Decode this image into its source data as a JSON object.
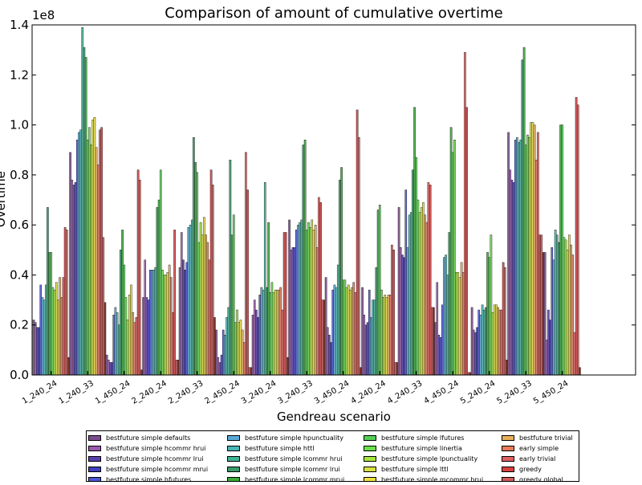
{
  "chart_data": {
    "type": "bar",
    "title": "Comparison of amount of cumulative overtime",
    "xlabel": "Gendreau scenario",
    "ylabel": "Overtime",
    "exponent_label": "1e8",
    "ylim": [
      0,
      1.4
    ],
    "yticks": [
      "0.0",
      "0.2",
      "0.4",
      "0.6",
      "0.8",
      "1.0",
      "1.2",
      "1.4"
    ],
    "grid": false,
    "legend_position": "bottom",
    "categories": [
      "1_240_24",
      "1_240_33",
      "1_450_24",
      "2_240_24",
      "2_240_33",
      "2_450_24",
      "3_240_24",
      "3_240_33",
      "3_450_24",
      "4_240_24",
      "4_240_33",
      "4_450_24",
      "5_240_24",
      "5_240_33",
      "5_450_24"
    ],
    "series": [
      {
        "name": "bestfuture simple defaults",
        "color": "#7d4e8e",
        "values": [
          0.22,
          0.89,
          0.08,
          0.31,
          0.43,
          0.18,
          0.24,
          0.62,
          0.39,
          0.35,
          0.67,
          0.21,
          0.27,
          0.97,
          0.49
        ]
      },
      {
        "name": "bestfuture simple hcommr hrui",
        "color": "#9c59b0",
        "values": [
          0.21,
          0.78,
          0.06,
          0.46,
          0.57,
          0.07,
          0.3,
          0.5,
          0.19,
          0.24,
          0.51,
          0.37,
          0.18,
          0.82,
          0.14
        ]
      },
      {
        "name": "bestfuture simple hcommr lrui",
        "color": "#5a3fb0",
        "values": [
          0.19,
          0.76,
          0.05,
          0.31,
          0.46,
          0.05,
          0.26,
          0.51,
          0.16,
          0.2,
          0.48,
          0.16,
          0.17,
          0.78,
          0.26
        ]
      },
      {
        "name": "bestfuture simple hcommr mrui",
        "color": "#3f3fbf",
        "values": [
          0.19,
          0.77,
          0.05,
          0.3,
          0.42,
          0.08,
          0.23,
          0.51,
          0.13,
          0.21,
          0.47,
          0.15,
          0.19,
          0.77,
          0.22
        ]
      },
      {
        "name": "bestfuture simple hfutures",
        "color": "#4a55d8",
        "values": [
          0.36,
          0.94,
          0.24,
          0.42,
          0.45,
          0.18,
          0.32,
          0.58,
          0.34,
          0.34,
          0.74,
          0.28,
          0.26,
          0.94,
          0.51
        ]
      },
      {
        "name": "bestfuture simple hpunctuality",
        "color": "#5aaad8",
        "values": [
          0.31,
          0.97,
          0.27,
          0.42,
          0.59,
          0.16,
          0.35,
          0.6,
          0.36,
          0.23,
          0.51,
          0.47,
          0.24,
          0.95,
          0.46
        ]
      },
      {
        "name": "bestfuture simple httl",
        "color": "#4ab5b5",
        "values": [
          0.3,
          0.98,
          0.25,
          0.42,
          0.6,
          0.23,
          0.34,
          0.61,
          0.35,
          0.3,
          0.64,
          0.48,
          0.28,
          0.93,
          0.58
        ]
      },
      {
        "name": "bestfuture simple lcommr hrui",
        "color": "#3fb595",
        "values": [
          0.36,
          1.39,
          0.2,
          0.43,
          0.62,
          0.27,
          0.77,
          0.62,
          0.44,
          0.3,
          0.65,
          0.4,
          0.26,
          0.94,
          0.56
        ]
      },
      {
        "name": "bestfuture simple lcommr lrui",
        "color": "#3a9a6a",
        "values": [
          0.67,
          1.31,
          0.5,
          0.67,
          0.95,
          0.86,
          0.35,
          0.92,
          0.78,
          0.43,
          0.82,
          0.57,
          0.27,
          1.26,
          0.53
        ]
      },
      {
        "name": "bestfuture simple lcommr mrui",
        "color": "#3aaa3a",
        "values": [
          0.49,
          1.27,
          0.58,
          0.7,
          0.85,
          0.56,
          0.61,
          0.94,
          0.83,
          0.66,
          1.07,
          0.99,
          0.49,
          1.31,
          1.0
        ]
      },
      {
        "name": "bestfuture simple lfutures",
        "color": "#55d055",
        "values": [
          0.49,
          0.94,
          0.44,
          0.82,
          0.81,
          0.64,
          0.33,
          0.58,
          0.38,
          0.68,
          0.87,
          0.89,
          0.47,
          0.92,
          1.0
        ]
      },
      {
        "name": "bestfuture simple linertia",
        "color": "#6ae04a",
        "values": [
          0.35,
          0.99,
          0.31,
          0.42,
          0.53,
          0.21,
          0.37,
          0.61,
          0.38,
          0.34,
          0.7,
          0.94,
          0.56,
          0.96,
          0.55
        ]
      },
      {
        "name": "bestfuture simple lpunctuality",
        "color": "#a5e63f",
        "values": [
          0.34,
          0.92,
          0.22,
          0.4,
          0.61,
          0.26,
          0.33,
          0.59,
          0.35,
          0.31,
          0.65,
          0.41,
          0.25,
          0.95,
          0.54
        ]
      },
      {
        "name": "bestfuture simple lttl",
        "color": "#d8e03f",
        "values": [
          0.37,
          1.02,
          0.32,
          0.4,
          0.56,
          0.21,
          0.34,
          0.62,
          0.36,
          0.32,
          0.67,
          0.41,
          0.28,
          1.01,
          0.5
        ]
      },
      {
        "name": "bestfuture simple mcommr hrui",
        "color": "#f0e040",
        "values": [
          0.3,
          1.03,
          0.36,
          0.41,
          0.63,
          0.22,
          0.34,
          0.58,
          0.34,
          0.31,
          0.69,
          0.39,
          0.28,
          1.01,
          0.56
        ]
      },
      {
        "name": "bestfuture trivial",
        "color": "#e8b05a",
        "values": [
          0.39,
          0.91,
          0.25,
          0.44,
          0.56,
          0.18,
          0.34,
          0.6,
          0.35,
          0.32,
          0.64,
          0.45,
          0.27,
          1.0,
          0.52
        ]
      },
      {
        "name": "early simple",
        "color": "#e87a5a",
        "values": [
          0.31,
          0.84,
          0.21,
          0.39,
          0.53,
          0.13,
          0.35,
          0.51,
          0.37,
          0.32,
          0.61,
          0.41,
          0.26,
          0.86,
          0.48
        ]
      },
      {
        "name": "early trivial",
        "color": "#e06060",
        "values": [
          0.39,
          0.98,
          0.23,
          0.25,
          0.46,
          0.89,
          0.26,
          0.71,
          0.33,
          0.52,
          0.77,
          1.29,
          0.26,
          0.97,
          0.17
        ]
      },
      {
        "name": "greedy",
        "color": "#d84040",
        "values": [
          0.59,
          0.99,
          0.82,
          0.58,
          0.82,
          0.74,
          0.57,
          0.69,
          1.06,
          0.5,
          0.76,
          1.07,
          0.45,
          0.56,
          1.11
        ]
      },
      {
        "name": "greedy global",
        "color": "#d05a5a",
        "values": [
          0.58,
          0.55,
          0.78,
          0.06,
          0.76,
          0.03,
          0.57,
          0.3,
          0.95,
          0.05,
          0.27,
          0.01,
          0.43,
          0.56,
          1.08
        ]
      },
      {
        "name": "",
        "color": "#7a2010",
        "values": [
          0.07,
          0.29,
          0.02,
          0.06,
          0.23,
          0.03,
          0.07,
          0.3,
          0.03,
          0.05,
          0.27,
          0.01,
          0.06,
          0.49,
          0.03
        ]
      }
    ]
  }
}
